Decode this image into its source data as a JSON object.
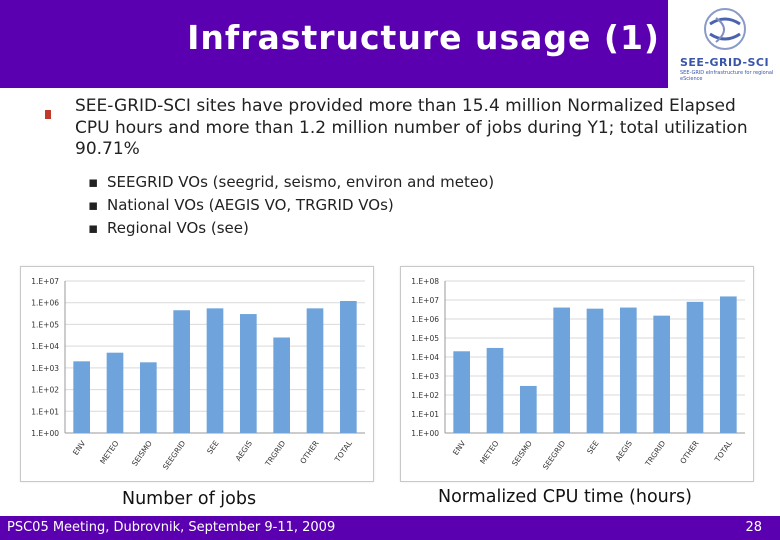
{
  "slide": {
    "title": "Infrastructure usage (1)",
    "logo_text": "SEE-GRID-SCI",
    "logo_subtext": "SEE-GRID eInfrastructure for regional eScience"
  },
  "content": {
    "main_bullet": "SEE-GRID-SCI sites have provided more than 15.4 million Normalized Elapsed CPU hours and more than 1.2 million number of jobs during Y1; total utilization 90.71%",
    "sub_bullets": [
      "SEEGRID VOs (seegrid, seismo, environ and meteo)",
      "National VOs (AEGIS VO, TRGRID VOs)",
      "Regional VOs (see)"
    ]
  },
  "captions": {
    "left": "Number of jobs",
    "right": "Normalized CPU time (hours)"
  },
  "footer": {
    "left": "PSC05 Meeting, Dubrovnik, September 9-11, 2009",
    "page": "28"
  },
  "colors": {
    "title_bg": "#5b00b0",
    "bar": "#6fa3db",
    "bullet": "#c0392b"
  },
  "chart_data": [
    {
      "type": "bar",
      "scale": "log",
      "categories": [
        "ENV",
        "METEO",
        "SEISMO",
        "SEEGRID",
        "SEE",
        "AEGIS",
        "TRGRID",
        "OTHER",
        "TOTAL"
      ],
      "values": [
        2000,
        5000,
        1800,
        450000,
        550000,
        300000,
        25000,
        550000,
        1200000
      ],
      "ylim": [
        1,
        10000000
      ],
      "yticks": [
        "1.E+00",
        "1.E+01",
        "1.E+02",
        "1.E+03",
        "1.E+04",
        "1.E+05",
        "1.E+06",
        "1.E+07"
      ],
      "grid": true
    },
    {
      "type": "bar",
      "scale": "log",
      "categories": [
        "ENV",
        "METEO",
        "SEISMO",
        "SEEGRID",
        "SEE",
        "AEGIS",
        "TRGRID",
        "OTHER",
        "TOTAL"
      ],
      "values": [
        20000,
        30000,
        300,
        4000000,
        3500000,
        4000000,
        1500000,
        8000000,
        15400000
      ],
      "ylim": [
        1,
        100000000
      ],
      "yticks": [
        "1.E+00",
        "1.E+01",
        "1.E+02",
        "1.E+03",
        "1.E+04",
        "1.E+05",
        "1.E+06",
        "1.E+07",
        "1.E+08"
      ],
      "grid": true
    }
  ]
}
